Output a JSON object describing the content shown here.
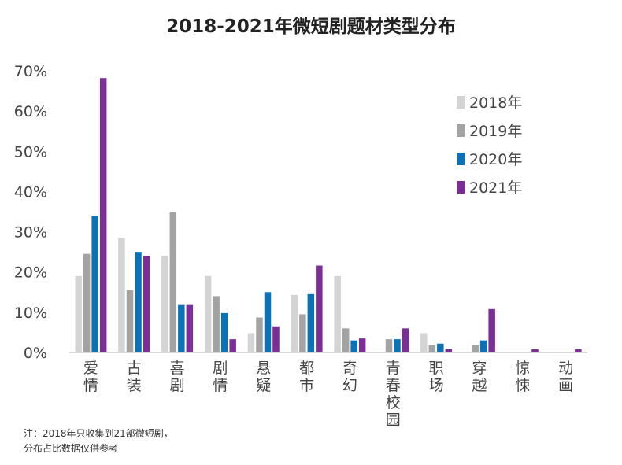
{
  "chart_data": {
    "type": "bar",
    "title": "2018-2021年微短剧题材类型分布",
    "categories": [
      "爱情",
      "古装",
      "喜剧",
      "剧情",
      "悬疑",
      "都市",
      "奇幻",
      "青春 校园",
      "职场",
      "穿越",
      "惊悚",
      "动画"
    ],
    "series": [
      {
        "name": "2018年",
        "color": "#d4d4d4",
        "values": [
          19,
          28.5,
          24,
          19,
          4.8,
          14.3,
          19,
          0,
          4.8,
          0,
          0,
          0
        ]
      },
      {
        "name": "2019年",
        "color": "#a3a3a3",
        "values": [
          24.5,
          15.5,
          34.8,
          14,
          8.7,
          9.5,
          6,
          3.3,
          1.8,
          1.8,
          0,
          0
        ]
      },
      {
        "name": "2020年",
        "color": "#0c72b7",
        "values": [
          34,
          25,
          11.8,
          9.8,
          15,
          14.5,
          3,
          3.3,
          2.2,
          3,
          0,
          0
        ]
      },
      {
        "name": "2021年",
        "color": "#7b2f96",
        "values": [
          68.2,
          24,
          11.8,
          3.3,
          6.5,
          21.6,
          3.5,
          6,
          0.8,
          10.8,
          0.8,
          0.8
        ]
      }
    ],
    "yticks": [
      "0%",
      "10%",
      "20%",
      "30%",
      "40%",
      "50%",
      "60%",
      "70%"
    ],
    "ylim": [
      0,
      70
    ],
    "legend_position": "top-right",
    "grid": false
  },
  "notes": {
    "line1": "注：2018年只收集到21部微短剧，",
    "line2": "分布占比数据仅供参考"
  }
}
